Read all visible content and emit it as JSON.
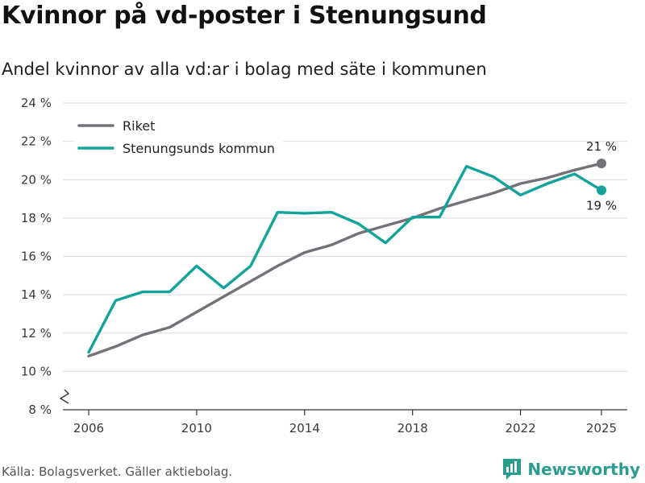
{
  "header": {
    "title": "Kvinnor på vd-poster i Stenungsund",
    "subtitle": "Andel kvinnor av alla vd:ar i bolag med säte i kommunen"
  },
  "footer": {
    "source": "Källa: Bolagsverket. Gäller aktiebolag.",
    "brand": "Newsworthy",
    "brand_icon": "bar-chart-logo-icon"
  },
  "colors": {
    "riket": "#737278",
    "kommun": "#13a39a",
    "grid": "#dddddd",
    "axis": "#333333",
    "brand": "#2a9d8f"
  },
  "chart_data": {
    "type": "line",
    "title": "Kvinnor på vd-poster i Stenungsund",
    "subtitle": "Andel kvinnor av alla vd:ar i bolag med säte i kommunen",
    "xlabel": "",
    "ylabel": "",
    "x": [
      2006,
      2007,
      2008,
      2009,
      2010,
      2011,
      2012,
      2013,
      2014,
      2015,
      2016,
      2017,
      2018,
      2019,
      2020,
      2021,
      2022,
      2023,
      2024,
      2025
    ],
    "x_ticks": [
      2006,
      2010,
      2014,
      2018,
      2022,
      2025
    ],
    "x_tick_labels": [
      "2006",
      "2010",
      "2014",
      "2018",
      "2022",
      "2025"
    ],
    "ylim": [
      8,
      24
    ],
    "y_ticks": [
      8,
      10,
      12,
      14,
      16,
      18,
      20,
      22,
      24
    ],
    "y_tick_labels": [
      "8 %",
      "10 %",
      "12 %",
      "14 %",
      "16 %",
      "18 %",
      "20 %",
      "22 %",
      "24 %"
    ],
    "y_axis_break": true,
    "grid": true,
    "legend_position": "top-left",
    "series": [
      {
        "name": "Riket",
        "key": "riket",
        "values": [
          10.8,
          11.3,
          11.9,
          12.3,
          13.1,
          13.9,
          14.7,
          15.5,
          16.2,
          16.6,
          17.2,
          17.6,
          18.0,
          18.5,
          18.9,
          19.3,
          19.8,
          20.1,
          20.5,
          20.85
        ],
        "end_label": "21 %",
        "end_label_position": "above"
      },
      {
        "name": "Stenungsunds kommun",
        "key": "kommun",
        "values": [
          11.0,
          13.7,
          14.15,
          14.15,
          15.5,
          14.35,
          15.5,
          18.3,
          18.25,
          18.3,
          17.7,
          16.7,
          18.05,
          18.05,
          20.7,
          20.15,
          19.2,
          19.8,
          20.3,
          19.45
        ],
        "end_label": "19 %",
        "end_label_position": "below"
      }
    ]
  }
}
